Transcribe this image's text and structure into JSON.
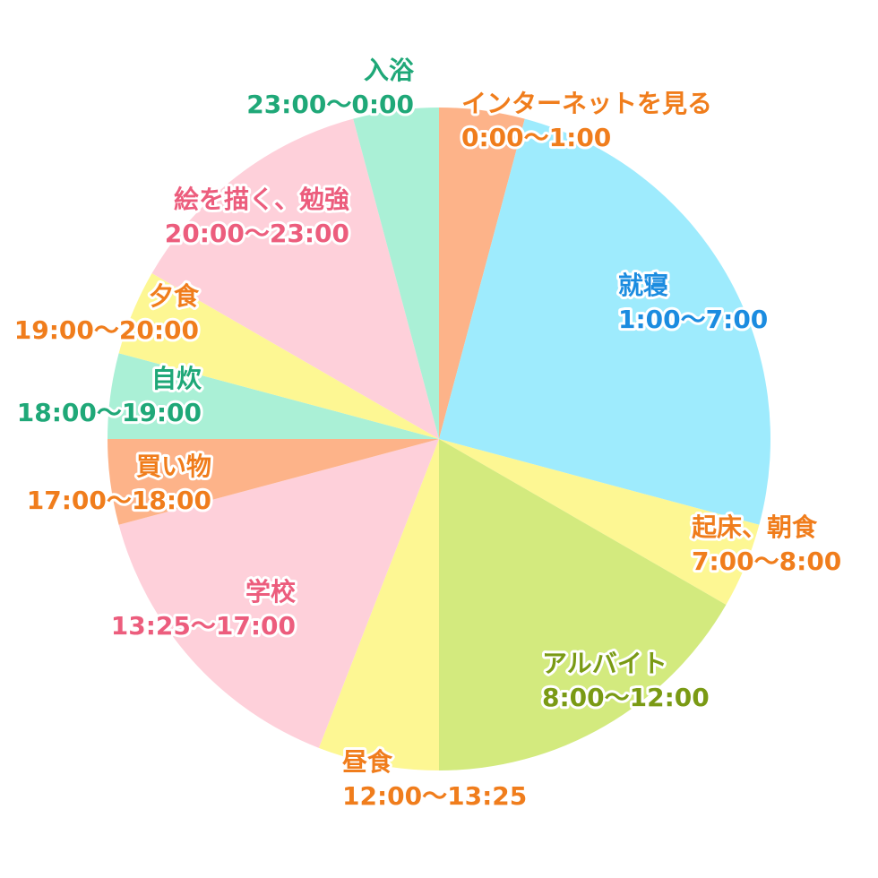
{
  "chart_data": {
    "type": "pie",
    "title": "",
    "unit": "hours",
    "start_angle_deg": 0,
    "direction": "clockwise",
    "slices": [
      {
        "name": "インターネットを見る",
        "range": "0:00〜1:00",
        "value": 1,
        "color": "#fdb389",
        "text_color": "#f07d1c"
      },
      {
        "name": "就寝",
        "range": "1:00〜7:00",
        "value": 6,
        "color": "#9eebfd",
        "text_color": "#1b8ce0"
      },
      {
        "name": "起床、朝食",
        "range": "7:00〜8:00",
        "value": 1,
        "color": "#fdf793",
        "text_color": "#f07d1c"
      },
      {
        "name": "アルバイト",
        "range": "8:00〜12:00",
        "value": 4,
        "color": "#d3ea7e",
        "text_color": "#7a9a14"
      },
      {
        "name": "昼食",
        "range": "12:00〜13:25",
        "value": 1.4167,
        "color": "#fdf793",
        "text_color": "#f07d1c"
      },
      {
        "name": "学校",
        "range": "13:25〜17:00",
        "value": 3.5833,
        "color": "#fed0da",
        "text_color": "#ec5d7d"
      },
      {
        "name": "買い物",
        "range": "17:00〜18:00",
        "value": 1,
        "color": "#fdb389",
        "text_color": "#f07d1c"
      },
      {
        "name": "自炊",
        "range": "18:00〜19:00",
        "value": 1,
        "color": "#aaf0d6",
        "text_color": "#1fa878"
      },
      {
        "name": "夕食",
        "range": "19:00〜20:00",
        "value": 1,
        "color": "#fdf793",
        "text_color": "#f07d1c"
      },
      {
        "name": "絵を描く、勉強",
        "range": "20:00〜23:00",
        "value": 3,
        "color": "#fed0da",
        "text_color": "#ec5d7d"
      },
      {
        "name": "入浴",
        "range": "23:00〜0:00",
        "value": 1,
        "color": "#aaf0d6",
        "text_color": "#1fa878"
      }
    ]
  }
}
